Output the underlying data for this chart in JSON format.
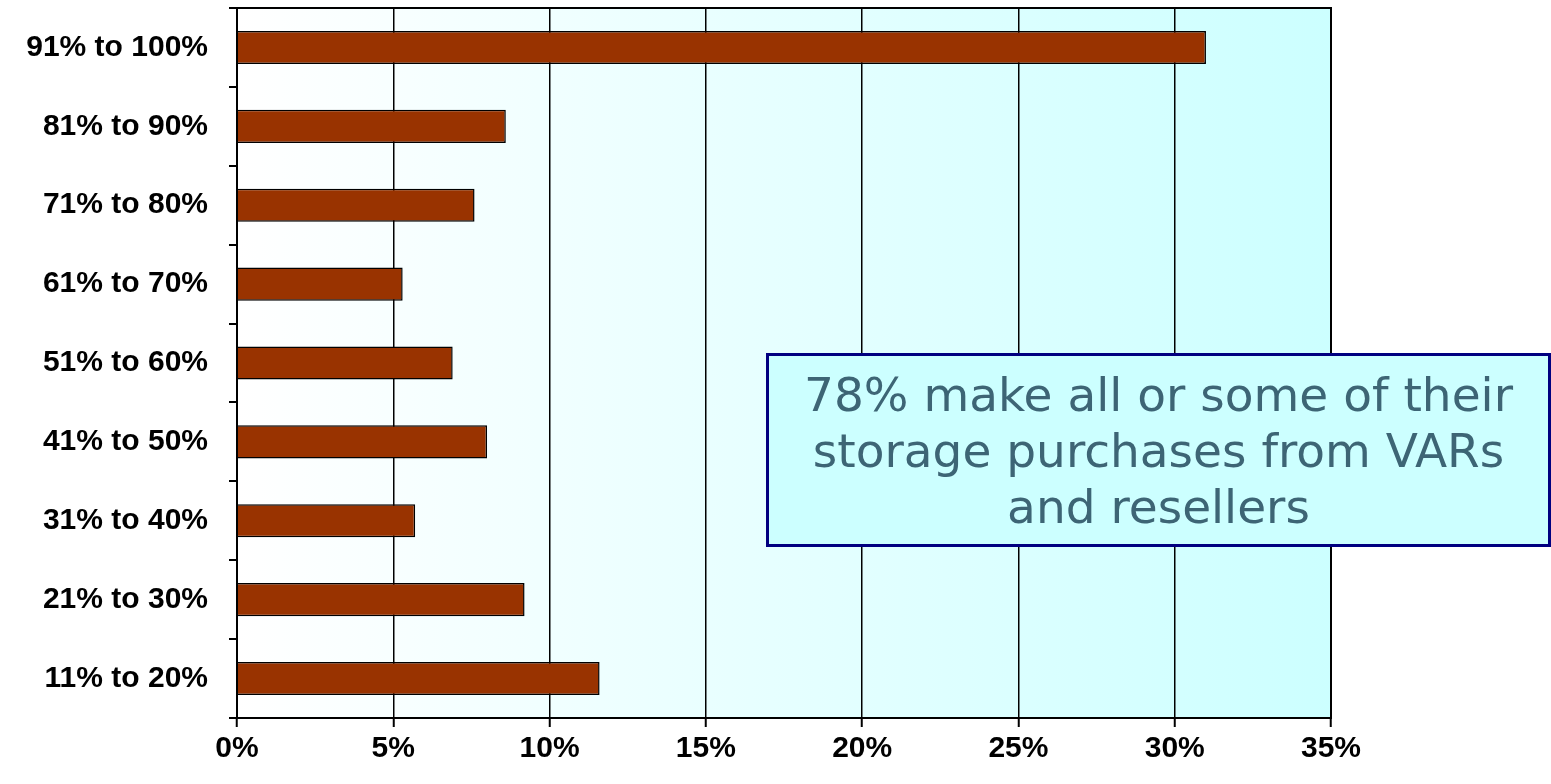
{
  "chart_data": {
    "type": "bar",
    "orientation": "horizontal",
    "categories": [
      "91% to 100%",
      "81% to 90%",
      "71% to 80%",
      "61% to 70%",
      "51% to 60%",
      "41% to 50%",
      "31% to 40%",
      "21% to 30%",
      "11% to 20%"
    ],
    "values": [
      31.0,
      8.6,
      7.6,
      5.3,
      6.9,
      8.0,
      5.7,
      9.2,
      11.6
    ],
    "color": "#993300",
    "xlim": [
      0,
      35
    ],
    "xticks": [
      {
        "value": 0,
        "label": "0%"
      },
      {
        "value": 5,
        "label": "5%"
      },
      {
        "value": 10,
        "label": "10%"
      },
      {
        "value": 15,
        "label": "15%"
      },
      {
        "value": 20,
        "label": "20%"
      },
      {
        "value": 25,
        "label": "25%"
      },
      {
        "value": 30,
        "label": "30%"
      },
      {
        "value": 35,
        "label": "35%"
      }
    ],
    "grid": "x",
    "annotations": [
      "78% make all or some of their storage purchases from VARs and resellers"
    ]
  }
}
